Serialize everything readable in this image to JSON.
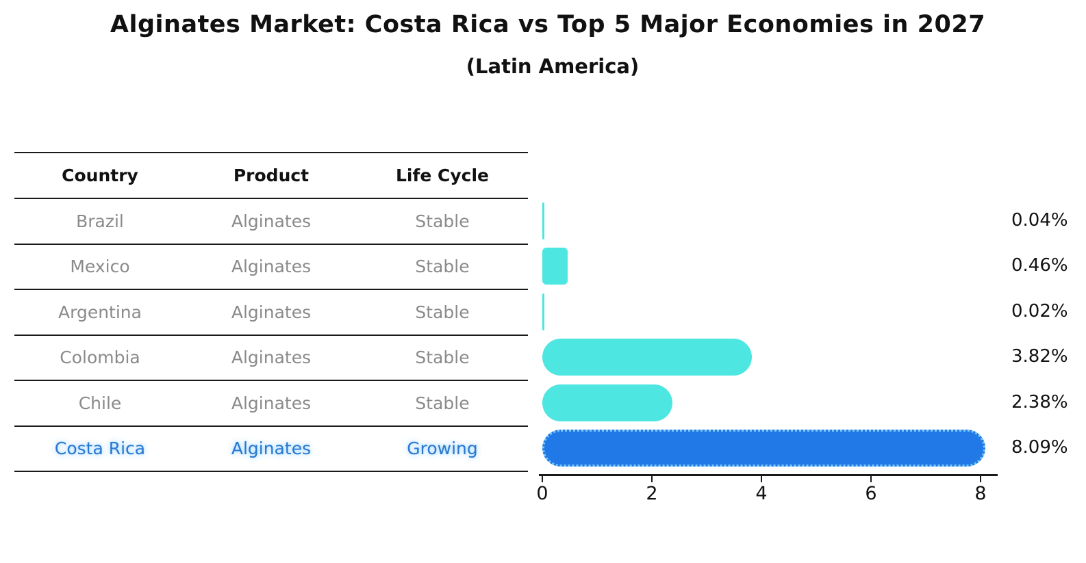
{
  "title": "Alginates Market: Costa Rica vs Top 5 Major Economies in 2027",
  "subtitle": "(Latin America)",
  "table": {
    "headers": [
      "Country",
      "Product",
      "Life Cycle"
    ],
    "rows": [
      {
        "country": "Brazil",
        "product": "Alginates",
        "life_cycle": "Stable",
        "highlight": false
      },
      {
        "country": "Mexico",
        "product": "Alginates",
        "life_cycle": "Stable",
        "highlight": false
      },
      {
        "country": "Argentina",
        "product": "Alginates",
        "life_cycle": "Stable",
        "highlight": false
      },
      {
        "country": "Colombia",
        "product": "Alginates",
        "life_cycle": "Stable",
        "highlight": false
      },
      {
        "country": "Chile",
        "product": "Alginates",
        "life_cycle": "Stable",
        "highlight": false
      },
      {
        "country": "Costa Rica",
        "product": "Alginates",
        "life_cycle": "Growing",
        "highlight": true
      }
    ]
  },
  "chart_data": {
    "type": "bar",
    "orientation": "horizontal",
    "title": "Alginates Market: Costa Rica vs Top 5 Major Economies in 2027 (Latin America)",
    "categories": [
      "Brazil",
      "Mexico",
      "Argentina",
      "Colombia",
      "Chile",
      "Costa Rica"
    ],
    "values": [
      0.04,
      0.46,
      0.02,
      3.82,
      2.38,
      8.09
    ],
    "value_labels": [
      "0.04%",
      "0.46%",
      "0.02%",
      "3.82%",
      "2.38%",
      "8.09%"
    ],
    "highlight_category": "Costa Rica",
    "x_ticks": [
      0,
      2,
      4,
      6,
      8
    ],
    "xlim": [
      0,
      8.5
    ],
    "grid": false,
    "legend": false,
    "colors": {
      "bar_default": "#4de6e1",
      "bar_highlight": "#2179e8",
      "bar_highlight_border": "#79c7f7",
      "highlight_text": "#2878cf",
      "row_text": "#8a8a8a",
      "axis_text": "#111111"
    }
  }
}
